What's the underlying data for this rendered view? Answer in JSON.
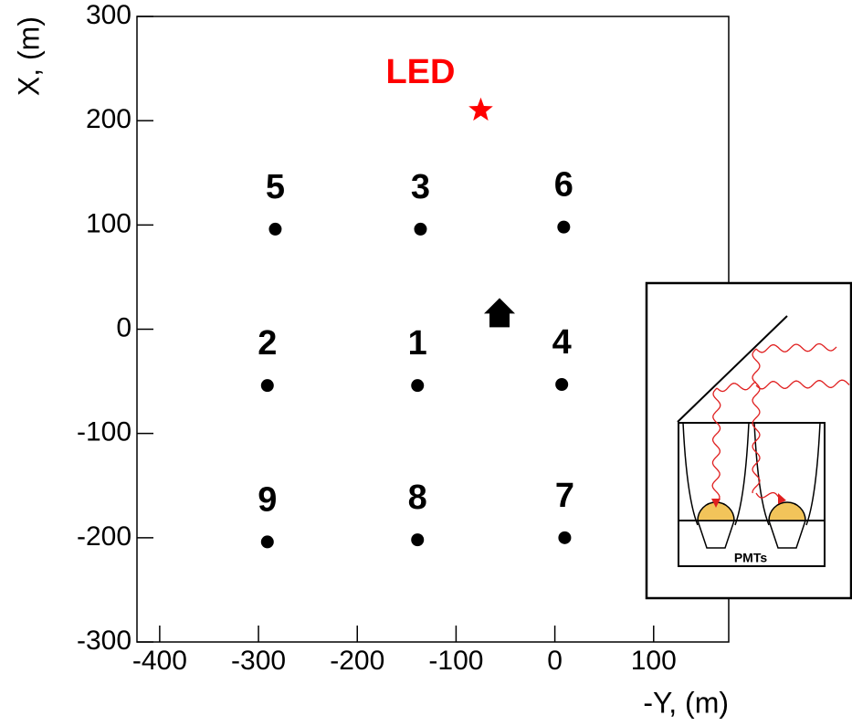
{
  "chart_data": {
    "type": "scatter",
    "xlabel": "-Y, (m)",
    "ylabel": "X, (m)",
    "xlim": [
      -423,
      176
    ],
    "ylim": [
      -300,
      300
    ],
    "xticks": [
      -400,
      -300,
      -200,
      -100,
      0,
      100
    ],
    "yticks": [
      -300,
      -200,
      -100,
      0,
      100,
      200,
      300
    ],
    "series": [
      {
        "marker": "circle",
        "color": "#000000",
        "x": [
          -283,
          -136,
          9,
          -291,
          -139,
          7,
          -291,
          -139,
          10
        ],
        "values": [
          96,
          96,
          98,
          -54,
          -54,
          -53,
          -204,
          -202,
          -200
        ],
        "point_labels": [
          "5",
          "3",
          "6",
          "2",
          "1",
          "4",
          "9",
          "8",
          "7"
        ]
      },
      {
        "marker": "star",
        "color": "#ff0000",
        "x": [
          -75
        ],
        "values": [
          210
        ],
        "point_labels": [
          "LED"
        ]
      },
      {
        "marker": "house",
        "color": "#000000",
        "x": [
          -56
        ],
        "values": [
          15
        ]
      }
    ]
  },
  "inset": {
    "label": "PMTs"
  }
}
